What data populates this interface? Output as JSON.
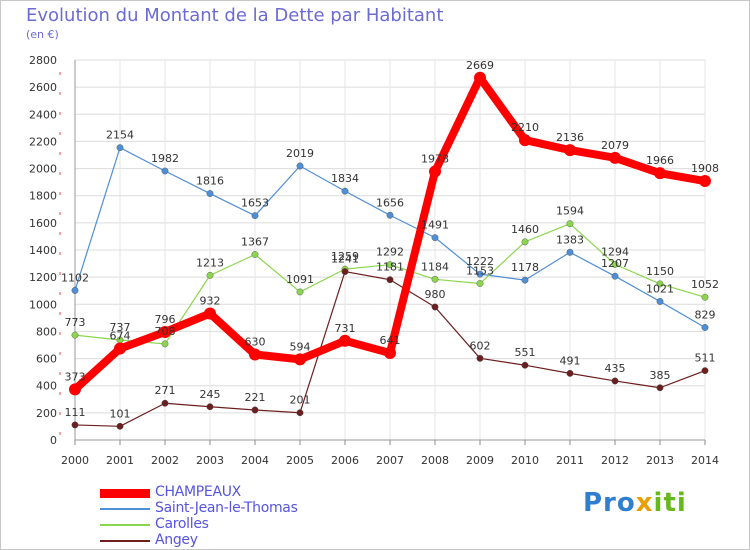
{
  "chart_data": {
    "type": "line",
    "title": "Evolution du Montant de la Dette par Habitant",
    "subtitle": "(en €)",
    "x": [
      "2000",
      "2001",
      "2002",
      "2003",
      "2004",
      "2005",
      "2006",
      "2007",
      "2008",
      "2009",
      "2010",
      "2011",
      "2012",
      "2013",
      "2014"
    ],
    "ylim": [
      0,
      2800
    ],
    "yticks": [
      0,
      200,
      400,
      600,
      800,
      1000,
      1200,
      1400,
      1600,
      1800,
      2000,
      2200,
      2400,
      2600,
      2800
    ],
    "grid": true,
    "legend_position": "bottom-left",
    "series": [
      {
        "name": "CHAMPEAUX",
        "color": "#ff0000",
        "values": [
          373,
          674,
          796,
          932,
          630,
          594,
          731,
          641,
          1978,
          2669,
          2210,
          2136,
          2079,
          1966,
          1908
        ]
      },
      {
        "name": "Saint-Jean-le-Thomas",
        "color": "#4f8fd6",
        "values": [
          1102,
          2154,
          1982,
          1816,
          1653,
          2019,
          1834,
          1656,
          1491,
          1222,
          1178,
          1383,
          1207,
          1021,
          829
        ]
      },
      {
        "name": "Carolles",
        "color": "#8cd64f",
        "values": [
          773,
          737,
          708,
          1213,
          1367,
          1091,
          1259,
          1292,
          1184,
          1153,
          1460,
          1594,
          1294,
          1150,
          1052
        ]
      },
      {
        "name": "Angey",
        "color": "#6b1f1f",
        "values": [
          111,
          101,
          271,
          245,
          221,
          201,
          1241,
          1181,
          980,
          602,
          551,
          491,
          435,
          385,
          511
        ]
      }
    ]
  },
  "brand": {
    "p1": "Pro",
    "p2": "x",
    "p3": "iti"
  }
}
